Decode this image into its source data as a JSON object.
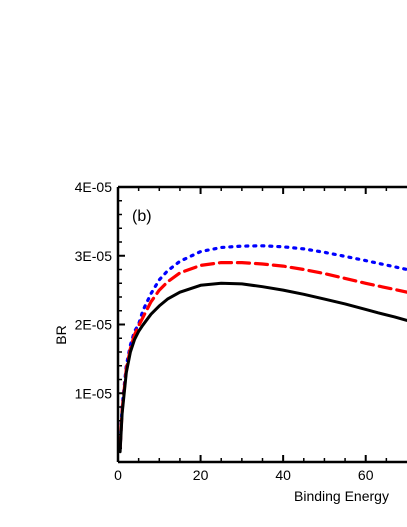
{
  "chart_data": {
    "type": "line",
    "panel_label": "(b)",
    "xlabel": "Binding Energy",
    "ylabel": "BR",
    "xlim": [
      0,
      70
    ],
    "ylim": [
      0,
      4e-05
    ],
    "x_ticks": [
      0,
      20,
      40,
      60
    ],
    "x_tick_labels": [
      "0",
      "20",
      "40",
      "60"
    ],
    "y_ticks": [
      1e-05,
      2e-05,
      3e-05,
      4e-05
    ],
    "y_tick_labels": [
      "1E-05",
      "2E-05",
      "3E-05",
      "4E-05"
    ],
    "grid": false,
    "series": [
      {
        "color": "#0000ff",
        "style": "dotted",
        "x": [
          0.5,
          1,
          2,
          3,
          4,
          5,
          6,
          8,
          10,
          12,
          15,
          20,
          25,
          30,
          35,
          40,
          45,
          50,
          55,
          60,
          63,
          67,
          70
        ],
        "values": [
          2e-06,
          8e-06,
          1.4e-05,
          1.7e-05,
          1.9e-05,
          2e-05,
          2.2e-05,
          2.45e-05,
          2.65e-05,
          2.78e-05,
          2.92e-05,
          3.06e-05,
          3.12e-05,
          3.14e-05,
          3.145e-05,
          3.13e-05,
          3.1e-05,
          3.05e-05,
          2.99e-05,
          2.93e-05,
          2.89e-05,
          2.84e-05,
          2.8e-05
        ]
      },
      {
        "color": "#ff0000",
        "style": "dashed",
        "x": [
          0.5,
          1,
          2,
          3,
          4,
          5,
          6,
          8,
          10,
          12,
          15,
          20,
          25,
          30,
          35,
          40,
          45,
          50,
          55,
          60,
          63,
          67,
          70
        ],
        "values": [
          2e-06,
          7.5e-06,
          1.35e-05,
          1.65e-05,
          1.85e-05,
          1.98e-05,
          2.1e-05,
          2.33e-05,
          2.5e-05,
          2.62e-05,
          2.75e-05,
          2.86e-05,
          2.9e-05,
          2.9e-05,
          2.88e-05,
          2.85e-05,
          2.8e-05,
          2.74e-05,
          2.67e-05,
          2.6e-05,
          2.56e-05,
          2.51e-05,
          2.47e-05
        ]
      },
      {
        "color": "#000000",
        "style": "solid",
        "x": [
          0.5,
          1,
          2,
          3,
          4,
          5,
          6,
          8,
          10,
          12,
          15,
          20,
          25,
          30,
          35,
          40,
          45,
          50,
          55,
          60,
          63,
          67,
          70
        ],
        "values": [
          1.5e-06,
          7e-06,
          1.3e-05,
          1.6e-05,
          1.78e-05,
          1.9e-05,
          1.99e-05,
          2.15e-05,
          2.27e-05,
          2.37e-05,
          2.47e-05,
          2.57e-05,
          2.6e-05,
          2.59e-05,
          2.55e-05,
          2.5e-05,
          2.44e-05,
          2.37e-05,
          2.3e-05,
          2.22e-05,
          2.17e-05,
          2.11e-05,
          2.06e-05
        ]
      }
    ]
  }
}
